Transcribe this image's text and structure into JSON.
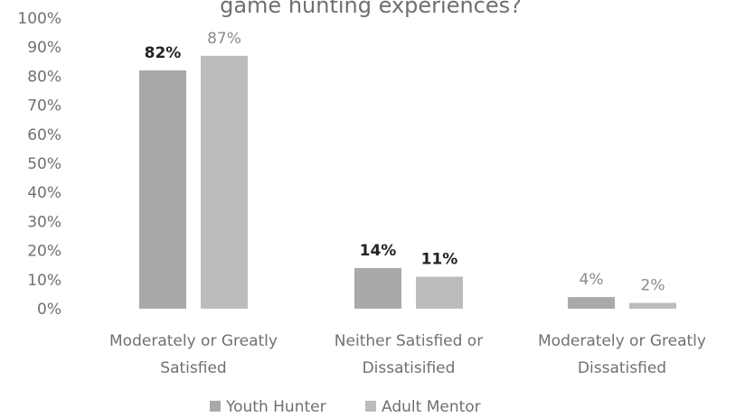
{
  "chart_data": {
    "type": "bar",
    "title": "game hunting experiences?",
    "categories": [
      [
        "Moderately or Greatly",
        "Satisfied"
      ],
      [
        "Neither Satisfied or",
        "Dissatisified"
      ],
      [
        "Moderately or Greatly",
        "Dissatisfied"
      ]
    ],
    "series": [
      {
        "name": "Youth Hunter",
        "values": [
          82,
          14,
          4
        ],
        "labels": [
          "82%",
          "14%",
          "4%"
        ],
        "color": "#a9a9a9"
      },
      {
        "name": "Adult Mentor",
        "values": [
          87,
          11,
          2
        ],
        "labels": [
          "87%",
          "11%",
          "2%"
        ],
        "color": "#bcbcbc"
      }
    ],
    "label_colors": [
      [
        "#222222",
        "#222222",
        "#8a8a8a"
      ],
      [
        "#8a8a8a",
        "#222222",
        "#8a8a8a"
      ]
    ],
    "ylim": [
      0,
      100
    ],
    "yticks": [
      "0%",
      "10%",
      "20%",
      "30%",
      "40%",
      "50%",
      "60%",
      "70%",
      "80%",
      "90%",
      "100%"
    ],
    "grid": false,
    "legend_position": "bottom"
  }
}
